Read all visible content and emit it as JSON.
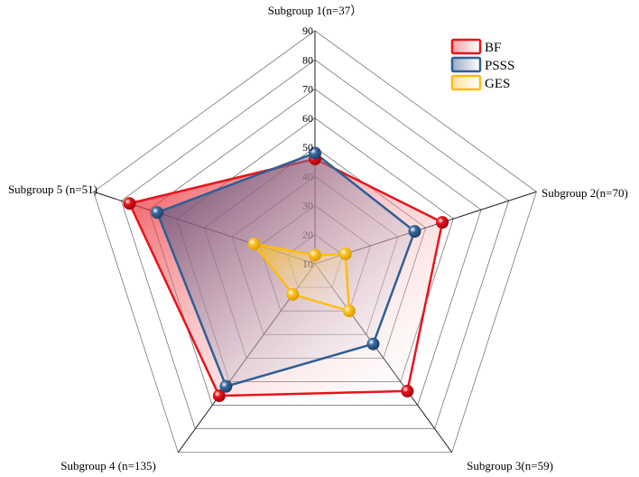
{
  "chart_data": {
    "type": "radar",
    "title": "",
    "axes": [
      "Subgroup 1(n=37）",
      "Subgroup 2(n=70)",
      "Subgroup 3(n=59)",
      "Subgroup 4 (n=135)",
      "Subgroup 5 (n=51)"
    ],
    "range": [
      10,
      90
    ],
    "ticks": [
      10,
      20,
      30,
      40,
      50,
      60,
      70,
      80,
      90
    ],
    "grid": true,
    "legend_position": "top-right",
    "series": [
      {
        "name": "BF",
        "color": "#e8141c",
        "values": [
          46,
          56,
          64,
          66,
          77
        ]
      },
      {
        "name": "PSSS",
        "color": "#2e5f96",
        "values": [
          48,
          46,
          44,
          62,
          67
        ]
      },
      {
        "name": "GES",
        "color": "#fdbd10",
        "values": [
          13,
          21,
          30,
          23,
          32
        ]
      }
    ]
  }
}
